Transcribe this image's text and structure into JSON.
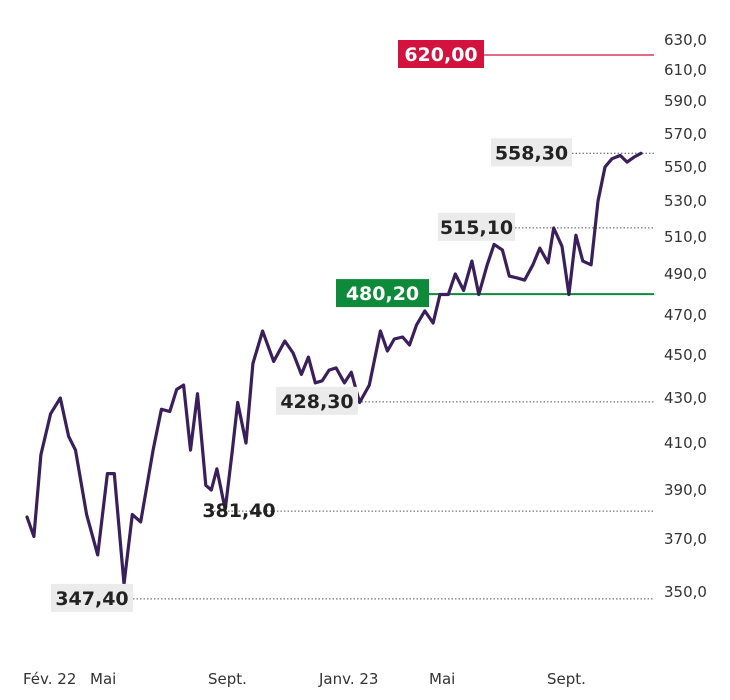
{
  "chart_data": {
    "type": "line",
    "y_ticks": [
      "630,0",
      "610,0",
      "590,0",
      "570,0",
      "550,0",
      "530,0",
      "510,0",
      "490,0",
      "470,0",
      "450,0",
      "430,0",
      "410,0",
      "390,0",
      "370,0",
      "350,0"
    ],
    "x_labels": [
      "Fév. 22",
      "Mai",
      "Sept.",
      "Janv. 23",
      "Mai",
      "Sept."
    ],
    "series": [
      {
        "color": "#3a1f5c",
        "x": [
          0,
          0.5,
          1,
          1.7,
          2.4,
          3,
          3.5,
          4.3,
          5.1,
          5.8,
          6.3,
          7,
          7.6,
          8.2,
          8.6,
          9.1,
          9.7,
          10.3,
          10.8,
          11.3,
          11.8,
          12.3,
          12.9,
          13.3,
          13.7,
          14.3,
          14.8,
          15.2,
          15.8,
          16.3,
          17,
          17.8,
          18.6,
          19.2,
          19.8,
          20.3,
          20.8,
          21.3,
          21.8,
          22.3,
          22.9,
          23.4,
          24,
          24.7,
          25.5,
          26,
          26.5,
          27.1,
          27.6,
          28.1,
          28.7,
          29.3,
          29.8,
          30.4,
          30.9,
          31.5,
          32.1,
          32.6,
          33.2,
          33.7,
          34.3,
          34.8,
          35.4,
          35.9,
          36.5,
          37,
          37.6,
          38,
          38.6,
          39.1,
          39.6,
          40.1,
          40.7,
          41.2,
          41.7,
          42.2,
          42.8,
          43.3,
          43.8,
          44.3
        ],
        "y": [
          379,
          371,
          405,
          423,
          430,
          413,
          407,
          380,
          364,
          397,
          397,
          353,
          380,
          377,
          390,
          407,
          425,
          424,
          434,
          436,
          407,
          432,
          392,
          390,
          399,
          382,
          406,
          428,
          410,
          446,
          462,
          447,
          457,
          451,
          441,
          449,
          437,
          438,
          443,
          444,
          437,
          442,
          428,
          436,
          462,
          452,
          458,
          459,
          455,
          465,
          472,
          466,
          480,
          480,
          490,
          482,
          497,
          480,
          495,
          506,
          503,
          489,
          488,
          487,
          495,
          504,
          496,
          515,
          505,
          480,
          511,
          497,
          495,
          530,
          550,
          555,
          557,
          553,
          556,
          558.3
        ]
      }
    ],
    "annotations": [
      {
        "label": "620,00",
        "value": 620.0,
        "color": "#d4123e",
        "line": "solid"
      },
      {
        "label": "558,30",
        "value": 558.3,
        "color": "#ebebeb",
        "line": "dotted"
      },
      {
        "label": "515,10",
        "value": 515.1,
        "color": "#ebebeb",
        "line": "dotted"
      },
      {
        "label": "480,20",
        "value": 480.2,
        "color": "#0e8a3b",
        "line": "solid"
      },
      {
        "label": "428,30",
        "value": 428.3,
        "color": "#ebebeb",
        "line": "dotted"
      },
      {
        "label": "381,40",
        "value": 381.4,
        "color": "#ebebeb",
        "line": "dotted"
      },
      {
        "label": "347,40",
        "value": 347.4,
        "color": "#ebebeb",
        "line": "dotted"
      }
    ],
    "ylim": [
      347,
      631
    ]
  }
}
